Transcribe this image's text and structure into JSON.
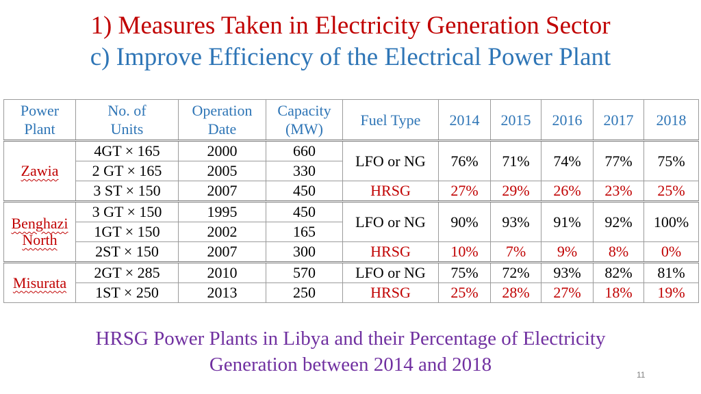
{
  "title_line1": "1) Measures Taken in Electricity Generation Sector",
  "title_line2": "c) Improve Efficiency of the Electrical Power Plant",
  "table": {
    "headers": {
      "power_plant": [
        "Power",
        "Plant"
      ],
      "units": [
        "No. of",
        "Units"
      ],
      "operation": [
        "Operation",
        "Date"
      ],
      "capacity": [
        "Capacity",
        "(MW)"
      ],
      "fuel": "Fuel Type",
      "years": [
        "2014",
        "2015",
        "2016",
        "2017",
        "2018"
      ]
    },
    "plants": [
      {
        "name_lines": [
          "Zawia"
        ],
        "units": [
          {
            "units": "4GT × 165",
            "date": "2000",
            "capacity": "660"
          },
          {
            "units": "2 GT × 165",
            "date": "2005",
            "capacity": "330"
          },
          {
            "units": "3 ST × 150",
            "date": "2007",
            "capacity": "450"
          }
        ],
        "conventional": {
          "fuel": "LFO or NG",
          "values": [
            "76%",
            "71%",
            "74%",
            "77%",
            "75%"
          ]
        },
        "hrsg": {
          "fuel": "HRSG",
          "values": [
            "27%",
            "29%",
            "26%",
            "23%",
            "25%"
          ]
        }
      },
      {
        "name_lines": [
          "Benghazi",
          "North"
        ],
        "units": [
          {
            "units": "3 GT × 150",
            "date": "1995",
            "capacity": "450"
          },
          {
            "units": "1GT × 150",
            "date": "2002",
            "capacity": "165"
          },
          {
            "units": "2ST × 150",
            "date": "2007",
            "capacity": "300"
          }
        ],
        "conventional": {
          "fuel": "LFO or NG",
          "values": [
            "90%",
            "93%",
            "91%",
            "92%",
            "100%"
          ]
        },
        "hrsg": {
          "fuel": "HRSG",
          "values": [
            "10%",
            "7%",
            "9%",
            "8%",
            "0%"
          ]
        }
      },
      {
        "name_lines": [
          "Misurata"
        ],
        "units": [
          {
            "units": "2GT × 285",
            "date": "2010",
            "capacity": "570"
          },
          {
            "units": "1ST × 250",
            "date": "2013",
            "capacity": "250"
          }
        ],
        "conventional": {
          "fuel": "LFO or NG",
          "values": [
            "75%",
            "72%",
            "93%",
            "82%",
            "81%"
          ]
        },
        "hrsg": {
          "fuel": "HRSG",
          "values": [
            "25%",
            "28%",
            "27%",
            "18%",
            "19%"
          ]
        }
      }
    ]
  },
  "caption_line1": "HRSG Power Plants in Libya and their Percentage of Electricity",
  "caption_line2": "Generation between 2014 and 2018",
  "page_number": "11",
  "colors": {
    "title_red": "#c00000",
    "title_blue": "#2e75b6",
    "caption_purple": "#7030a0"
  }
}
